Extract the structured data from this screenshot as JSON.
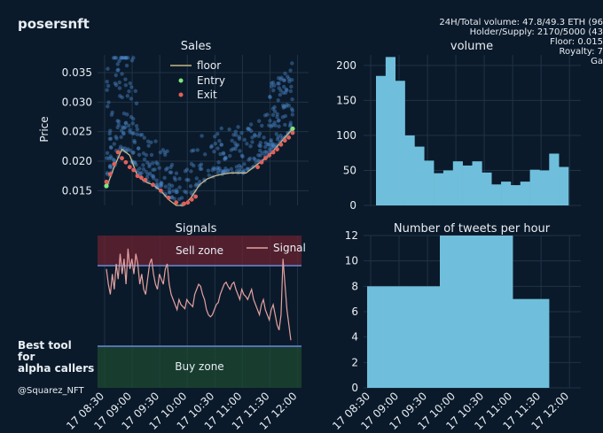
{
  "header": {
    "title": "posersnft",
    "stats": [
      "24H/Total volume: 47.8/49.3 ETH (96",
      "Holder/Supply: 2170/5000 (43",
      "Floor: 0.015",
      "Royalty: 7",
      "Ga"
    ]
  },
  "sidebar": {
    "promo": [
      "Best tool",
      "for",
      "alpha callers"
    ],
    "handle": "@Squarez_NFT"
  },
  "chart_data": [
    {
      "type": "scatter",
      "title": "Sales",
      "ylabel": "Price",
      "ylim": [
        0.0125,
        0.038
      ],
      "yticks": [
        "0.015",
        "0.020",
        "0.025",
        "0.030",
        "0.035"
      ],
      "legend": [
        "floor",
        "Entry",
        "Exit"
      ],
      "colors": {
        "sales": "#4a86c8",
        "floor": "#c8b88a",
        "entry": "#7ee87e",
        "exit": "#e0605a"
      },
      "floor": [
        0.0155,
        0.019,
        0.022,
        0.021,
        0.0175,
        0.0165,
        0.016,
        0.015,
        0.0135,
        0.0125,
        0.0125,
        0.014,
        0.016,
        0.017,
        0.0175,
        0.0178,
        0.018,
        0.018,
        0.018,
        0.019,
        0.02,
        0.021,
        0.0225,
        0.024,
        0.0255
      ],
      "exit": [
        [
          0,
          0.0165
        ],
        [
          0.5,
          0.0178
        ],
        [
          1,
          0.0195
        ],
        [
          1.5,
          0.0215
        ],
        [
          2,
          0.0205
        ],
        [
          2.5,
          0.0198
        ],
        [
          3,
          0.019
        ],
        [
          3.5,
          0.0185
        ],
        [
          4,
          0.0175
        ],
        [
          4.5,
          0.0172
        ],
        [
          5,
          0.0168
        ],
        [
          6,
          0.016
        ],
        [
          7,
          0.015
        ],
        [
          8,
          0.0138
        ],
        [
          9,
          0.013
        ],
        [
          10,
          0.0128
        ],
        [
          10.5,
          0.013
        ],
        [
          11,
          0.0135
        ],
        [
          11.5,
          0.014
        ],
        [
          19.5,
          0.019
        ],
        [
          20,
          0.0198
        ],
        [
          20.5,
          0.0205
        ],
        [
          21,
          0.021
        ],
        [
          21.5,
          0.0215
        ],
        [
          22,
          0.022
        ],
        [
          22.5,
          0.0228
        ],
        [
          23,
          0.0235
        ],
        [
          23.5,
          0.024
        ],
        [
          24,
          0.0248
        ]
      ],
      "entry": [
        [
          0,
          0.0158
        ],
        [
          24,
          0.0255
        ]
      ]
    },
    {
      "type": "bar",
      "title": "volume",
      "values": [
        185,
        212,
        178,
        100,
        84,
        64,
        46,
        50,
        63,
        57,
        63,
        47,
        30,
        34,
        29,
        34,
        51,
        50,
        74,
        55
      ],
      "ylim": [
        0,
        215
      ],
      "yticks": [
        "0",
        "50",
        "100",
        "150",
        "200"
      ]
    },
    {
      "type": "line",
      "title": "Signals",
      "legend": [
        "Signal"
      ],
      "sell_zone": "Sell zone",
      "buy_zone": "Buy zone",
      "values": [
        0.75,
        0.6,
        0.5,
        0.7,
        0.55,
        0.8,
        0.65,
        0.9,
        0.7,
        0.85,
        0.6,
        0.95,
        0.75,
        0.85,
        0.7,
        0.9,
        0.8,
        0.6,
        0.7,
        0.55,
        0.5,
        0.65,
        0.8,
        0.85,
        0.7,
        0.6,
        0.55,
        0.7,
        0.65,
        0.6,
        0.75,
        0.8,
        0.6,
        0.5,
        0.45,
        0.4,
        0.35,
        0.45,
        0.4,
        0.38,
        0.36,
        0.45,
        0.42,
        0.4,
        0.38,
        0.5,
        0.55,
        0.6,
        0.58,
        0.5,
        0.45,
        0.35,
        0.3,
        0.28,
        0.3,
        0.35,
        0.4,
        0.42,
        0.5,
        0.55,
        0.6,
        0.62,
        0.58,
        0.55,
        0.6,
        0.62,
        0.55,
        0.5,
        0.45,
        0.55,
        0.5,
        0.48,
        0.45,
        0.5,
        0.55,
        0.45,
        0.4,
        0.35,
        0.3,
        0.4,
        0.45,
        0.35,
        0.3,
        0.25,
        0.35,
        0.4,
        0.3,
        0.2,
        0.15,
        0.3,
        0.85,
        0.6,
        0.35,
        0.2,
        0.05
      ]
    },
    {
      "type": "bar",
      "title": "Number of tweets per hour",
      "values": [
        8,
        8,
        12,
        12,
        7
      ],
      "ylim": [
        0,
        12
      ],
      "yticks": [
        "0",
        "2",
        "4",
        "6",
        "8",
        "10",
        "12"
      ]
    }
  ],
  "xticks": [
    "17 08:30",
    "17 09:00",
    "17 09:30",
    "17 10:00",
    "17 10:30",
    "17 11:00",
    "17 11:30",
    "17 12:00"
  ]
}
